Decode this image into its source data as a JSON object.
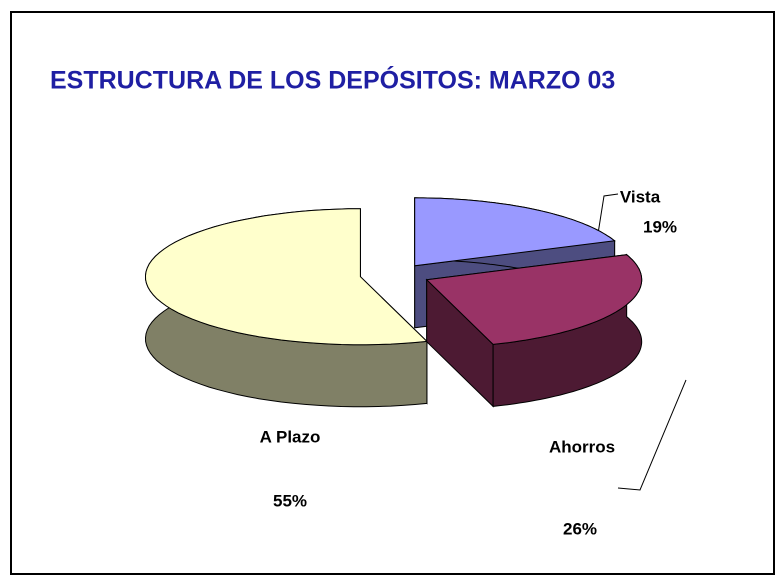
{
  "chart_data": {
    "type": "pie3d",
    "title": "ESTRUCTURA DE LOS DEPÓSITOS: MARZO 03",
    "categories": [
      "Vista",
      "Ahorros",
      "A Plazo"
    ],
    "values": [
      19,
      26,
      55
    ],
    "value_labels": [
      "19%",
      "26%",
      "55%"
    ],
    "colors": [
      "#9999ff",
      "#993366",
      "#ffffcc"
    ]
  }
}
